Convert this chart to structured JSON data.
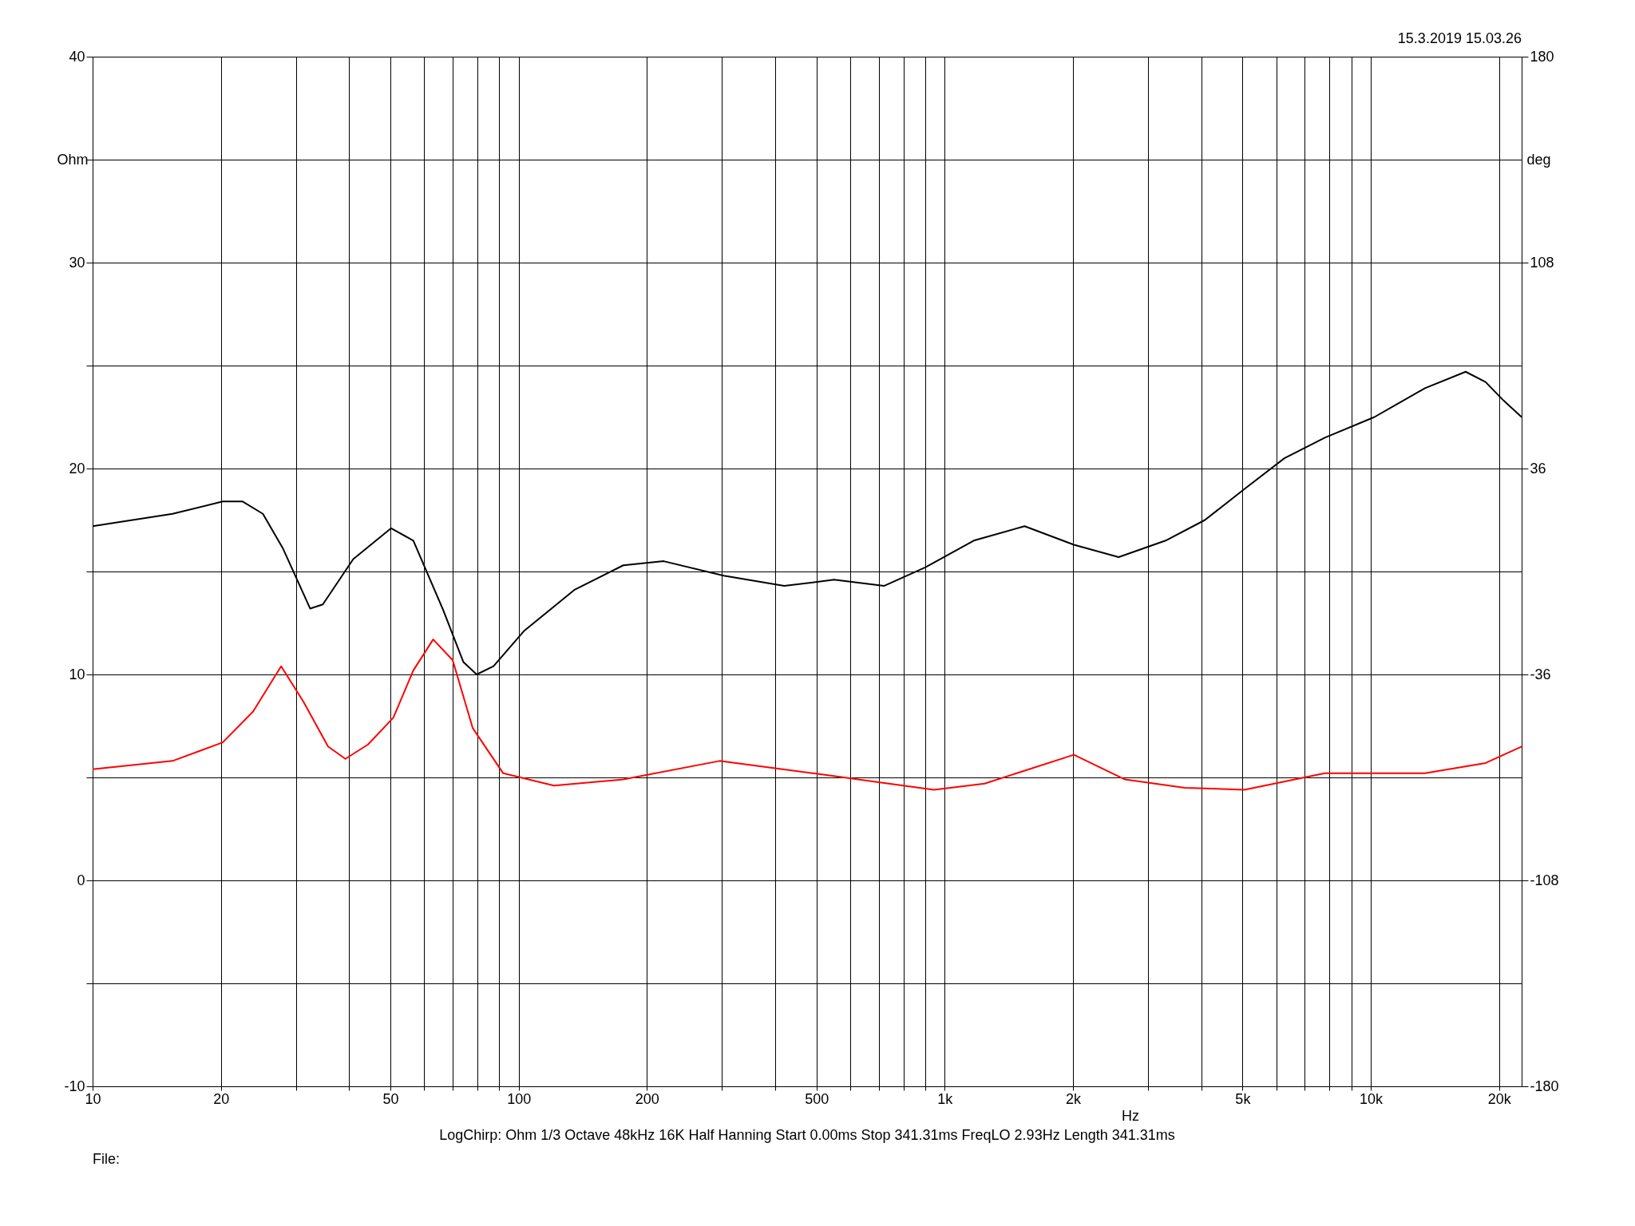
{
  "chart_data": {
    "type": "line",
    "xlabel": "Hz",
    "ylabel": "Ohm",
    "y2label": "deg",
    "log": "x",
    "grid": true,
    "annotations": [
      "15.3.2019 15.03.26",
      "LogChirp:  Ohm    1/3 Octave    48kHz    16K    Half Hanning    Start 0.00ms     Stop 341.31ms     FreqLO 2.93Hz     Length 341.31ms",
      "File:"
    ],
    "xlim": [
      10,
      22600
    ],
    "xticks": [
      10,
      20,
      {
        "value": 30,
        "label": null
      },
      {
        "value": 40,
        "label": null
      },
      50,
      {
        "value": 60,
        "label": null
      },
      {
        "value": 70,
        "label": null
      },
      {
        "value": 80,
        "label": null
      },
      {
        "value": 90,
        "label": null
      },
      100,
      200,
      {
        "value": 300,
        "label": null
      },
      {
        "value": 400,
        "label": null
      },
      500,
      {
        "value": 600,
        "label": null
      },
      {
        "value": 700,
        "label": null
      },
      {
        "value": 800,
        "label": null
      },
      {
        "value": 900,
        "label": null
      },
      {
        "value": 1000,
        "label": "1k"
      },
      {
        "value": 2000,
        "label": "2k"
      },
      {
        "value": 3000,
        "label": null
      },
      {
        "value": 4000,
        "label": null
      },
      {
        "value": 5000,
        "label": "5k"
      },
      {
        "value": 6000,
        "label": null
      },
      {
        "value": 7000,
        "label": null
      },
      {
        "value": 8000,
        "label": null
      },
      {
        "value": 9000,
        "label": null
      },
      {
        "value": 10000,
        "label": "10k"
      },
      {
        "value": 20000,
        "label": "20k"
      }
    ],
    "ylim": [
      -10,
      40
    ],
    "yticks": [
      -10,
      {
        "value": -5,
        "label": null
      },
      0,
      {
        "value": 5,
        "label": null
      },
      10,
      {
        "value": 15,
        "label": null
      },
      20,
      {
        "value": 25,
        "label": null
      },
      30,
      {
        "value": 35,
        "label": null
      },
      40
    ],
    "y2lim": [
      -180,
      180
    ],
    "y2ticks": [
      -180,
      -108,
      -36,
      36,
      108,
      180
    ],
    "series": [
      {
        "color": "#000000",
        "x": [
          10,
          15.4,
          20.2,
          22.5,
          25.1,
          28,
          32.4,
          34.7,
          40.9,
          50.2,
          56.6,
          66.6,
          74.2,
          79.7,
          87.3,
          102.8,
          135,
          176,
          219,
          303,
          420,
          550,
          720,
          900,
          1170,
          1540,
          2010,
          2560,
          3300,
          4080,
          5050,
          6270,
          7800,
          10200,
          13400,
          16700,
          18600,
          20500,
          22600
        ],
        "values": [
          17.2,
          17.8,
          18.4,
          18.4,
          17.8,
          16.1,
          13.2,
          13.4,
          15.6,
          17.1,
          16.5,
          13.1,
          10.6,
          10.0,
          10.4,
          12.1,
          14.1,
          15.3,
          15.5,
          14.8,
          14.3,
          14.6,
          14.3,
          15.2,
          16.5,
          17.2,
          16.3,
          15.7,
          16.5,
          17.5,
          19.0,
          20.5,
          21.5,
          22.5,
          23.9,
          24.7,
          24.2,
          23.3,
          22.5
        ]
      },
      {
        "color": "#ff0000",
        "x": [
          10,
          15.4,
          20.2,
          23.8,
          27.7,
          31.2,
          35.7,
          39.2,
          44.3,
          50.8,
          56.6,
          63,
          70,
          78,
          92,
          121,
          176,
          296,
          492,
          683,
          944,
          1240,
          2010,
          2650,
          3660,
          5050,
          7800,
          13400,
          18600,
          22600
        ],
        "values": [
          5.4,
          5.8,
          6.7,
          8.2,
          10.4,
          8.7,
          6.5,
          5.9,
          6.6,
          7.9,
          10.2,
          11.7,
          10.7,
          7.4,
          5.2,
          4.6,
          4.9,
          5.8,
          5.2,
          4.8,
          4.4,
          4.7,
          6.1,
          4.9,
          4.5,
          4.4,
          5.2,
          5.2,
          5.7,
          6.5
        ]
      }
    ]
  }
}
